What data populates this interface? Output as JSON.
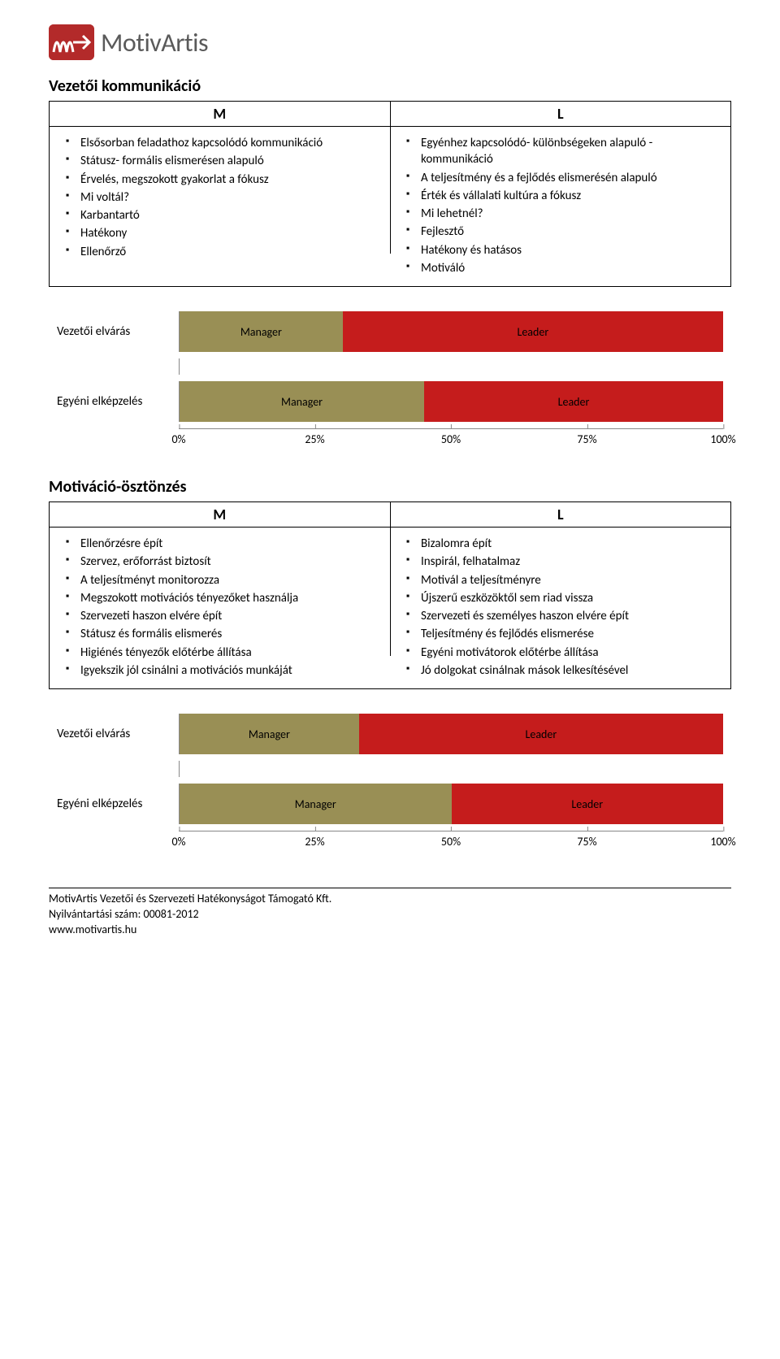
{
  "brand": {
    "name_part1": "Motiv",
    "name_part2": "Artis",
    "mark_bg": "#b32a2a",
    "mark_stroke": "#ffffff",
    "text_color": "#5a5a5a"
  },
  "section1": {
    "title": "Vezetői kommunikáció",
    "col_m_header": "M",
    "col_l_header": "L",
    "m_items": [
      "Elsősorban feladathoz kapcsolódó kommunikáció",
      "Státusz- formális elismerésen alapuló",
      "Érvelés, megszokott gyakorlat a fókusz",
      "Mi voltál?",
      "Karbantartó",
      "Hatékony",
      "Ellenőrző"
    ],
    "l_items": [
      "Egyénhez kapcsolódó- különbségeken alapuló - kommunikáció",
      "A teljesítmény és a fejlődés elismerésén alapuló",
      "Érték és vállalati kultúra a fókusz",
      "Mi lehetnél?",
      "Fejlesztő",
      "Hatékony és hatásos",
      "Motiváló"
    ]
  },
  "chart1": {
    "type": "stacked-bar-horizontal",
    "row1_label": "Vezetői elvárás",
    "row2_label": "Egyéni elképzelés",
    "seg_labels": {
      "m": "Manager",
      "l": "Leader"
    },
    "row1": {
      "manager_pct": 30,
      "leader_pct": 70
    },
    "row2": {
      "manager_pct": 45,
      "leader_pct": 55
    },
    "colors": {
      "manager": "#998f55",
      "leader": "#c51c1c"
    },
    "axis_ticks": [
      "0%",
      "25%",
      "50%",
      "75%",
      "100%"
    ],
    "axis_positions_pct": [
      0,
      25,
      50,
      75,
      100
    ],
    "label_fontsize": 15,
    "tick_fontsize": 14
  },
  "section2": {
    "title": "Motiváció-ösztönzés",
    "col_m_header": "M",
    "col_l_header": "L",
    "m_items": [
      "Ellenőrzésre épít",
      "Szervez, erőforrást biztosít",
      "A teljesítményt monitorozza",
      "Megszokott motivációs tényezőket használja",
      "Szervezeti haszon elvére épít",
      "Státusz és formális elismerés",
      "Higiénés tényezők előtérbe állítása",
      "Igyekszik jól csinálni a motivációs munkáját"
    ],
    "l_items": [
      "Bizalomra épít",
      "Inspirál, felhatalmaz",
      "Motivál a teljesítményre",
      "Újszerű eszközöktől sem riad vissza",
      "Szervezeti és személyes haszon elvére épít",
      "Teljesítmény és fejlődés elismerése",
      "Egyéni motivátorok előtérbe állítása",
      "Jó dolgokat csinálnak mások lelkesítésével"
    ]
  },
  "chart2": {
    "type": "stacked-bar-horizontal",
    "row1_label": "Vezetői elvárás",
    "row2_label": "Egyéni elképzelés",
    "seg_labels": {
      "m": "Manager",
      "l": "Leader"
    },
    "row1": {
      "manager_pct": 33,
      "leader_pct": 67
    },
    "row2": {
      "manager_pct": 50,
      "leader_pct": 50
    },
    "colors": {
      "manager": "#998f55",
      "leader": "#c51c1c"
    },
    "axis_ticks": [
      "0%",
      "25%",
      "50%",
      "75%",
      "100%"
    ],
    "axis_positions_pct": [
      0,
      25,
      50,
      75,
      100
    ],
    "label_fontsize": 15,
    "tick_fontsize": 14
  },
  "footer": {
    "line1": "MotivArtis Vezetői és Szervezeti Hatékonyságot Támogató Kft.",
    "line2": "Nyilvántartási szám: 00081-2012",
    "line3": "www.motivartis.hu"
  }
}
